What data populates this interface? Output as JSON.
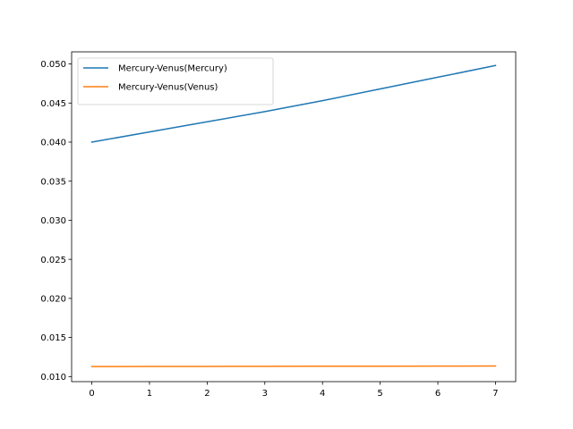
{
  "chart_data": {
    "type": "line",
    "title": "",
    "xlabel": "",
    "ylabel": "",
    "xlim": [
      -0.35,
      7.35
    ],
    "ylim": [
      0.00935,
      0.05155
    ],
    "x_ticks": [
      0,
      1,
      2,
      3,
      4,
      5,
      6,
      7
    ],
    "y_ticks": [
      0.01,
      0.015,
      0.02,
      0.025,
      0.03,
      0.035,
      0.04,
      0.045,
      0.05
    ],
    "grid": false,
    "legend": {
      "position": "top-left"
    },
    "x": [
      0,
      1,
      2,
      3,
      4,
      5,
      6,
      7
    ],
    "series": [
      {
        "name": "Mercury-Venus(Mercury)",
        "color": "#1f77b4",
        "values": [
          0.04,
          0.0413,
          0.0426,
          0.0439,
          0.0453,
          0.0468,
          0.0483,
          0.0498
        ]
      },
      {
        "name": "Mercury-Venus(Venus)",
        "color": "#ff7f0e",
        "values": [
          0.01128,
          0.01129,
          0.0113,
          0.01131,
          0.01132,
          0.01133,
          0.01134,
          0.01135
        ]
      }
    ]
  }
}
